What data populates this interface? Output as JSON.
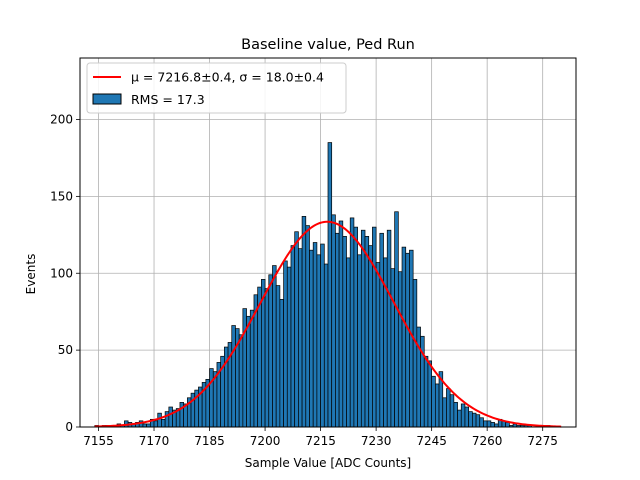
{
  "chart_data": {
    "type": "bar",
    "title": "Baseline value, Ped Run",
    "xlabel": "Sample Value [ADC Counts]",
    "ylabel": "Events",
    "xlim": [
      7150,
      7284
    ],
    "ylim": [
      0,
      240
    ],
    "xticks": [
      7155,
      7170,
      7185,
      7200,
      7215,
      7230,
      7245,
      7260,
      7275
    ],
    "yticks": [
      0,
      50,
      100,
      150,
      200
    ],
    "grid": true,
    "legend_position": "top-left",
    "legend": {
      "fit_label": "μ = 7216.8±0.4, σ = 18.0±0.4",
      "hist_label": "RMS = 17.3"
    },
    "histogram": {
      "name": "RMS = 17.3",
      "color": "#1f77b4",
      "edge_color": "#000000",
      "bin_width": 1,
      "bin_start": 7154,
      "counts": [
        1,
        0,
        1,
        1,
        0,
        1,
        2,
        1,
        4,
        3,
        2,
        3,
        4,
        2,
        2,
        5,
        4,
        9,
        5,
        10,
        13,
        11,
        12,
        16,
        15,
        19,
        22,
        24,
        26,
        29,
        31,
        38,
        36,
        42,
        46,
        52,
        55,
        66,
        64,
        60,
        77,
        72,
        76,
        86,
        91,
        96,
        90,
        99,
        105,
        92,
        83,
        108,
        104,
        118,
        127,
        116,
        137,
        131,
        115,
        120,
        112,
        119,
        106,
        185,
        138,
        126,
        134,
        124,
        110,
        136,
        130,
        112,
        128,
        124,
        118,
        130,
        107,
        126,
        110,
        128,
        103,
        140,
        101,
        117,
        113,
        115,
        96,
        65,
        59,
        46,
        43,
        33,
        28,
        36,
        19,
        25,
        21,
        16,
        11,
        15,
        13,
        10,
        9,
        8,
        6,
        4,
        4,
        3,
        2,
        5,
        4,
        3,
        1,
        2,
        1,
        1,
        1,
        1,
        0,
        0,
        1,
        0,
        1,
        0,
        0
      ]
    },
    "fit": {
      "name": "μ = 7216.8±0.4, σ = 18.0±0.4",
      "color": "#ff0000",
      "mu": 7216.8,
      "sigma": 18.0,
      "amplitude": 133.5,
      "x_range": [
        7154,
        7280
      ]
    }
  }
}
